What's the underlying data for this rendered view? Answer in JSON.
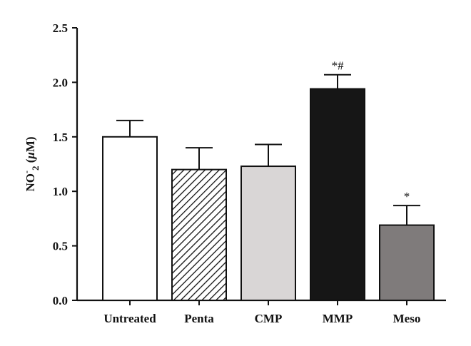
{
  "chart_data": {
    "type": "bar",
    "categories": [
      "Untreated",
      "Penta",
      "CMP",
      "MMP",
      "Meso"
    ],
    "values": [
      1.5,
      1.2,
      1.23,
      1.94,
      0.69
    ],
    "errors": [
      0.15,
      0.2,
      0.2,
      0.13,
      0.18
    ],
    "annotations": [
      "",
      "",
      "",
      "*#",
      "*"
    ],
    "fills": [
      "#ffffff",
      "hatch",
      "#d9d6d6",
      "#161616",
      "#7f7b7b"
    ],
    "ylabel": {
      "prefix": "NO",
      "sup": "-",
      "sub": "2",
      "unit_open": " (",
      "unit_mu": "μ",
      "unit_rest": "M)"
    },
    "yticks": [
      "0.0",
      "0.5",
      "1.0",
      "1.5",
      "2.0",
      "2.5"
    ],
    "ylim": [
      0,
      2.5
    ],
    "grid": false
  }
}
